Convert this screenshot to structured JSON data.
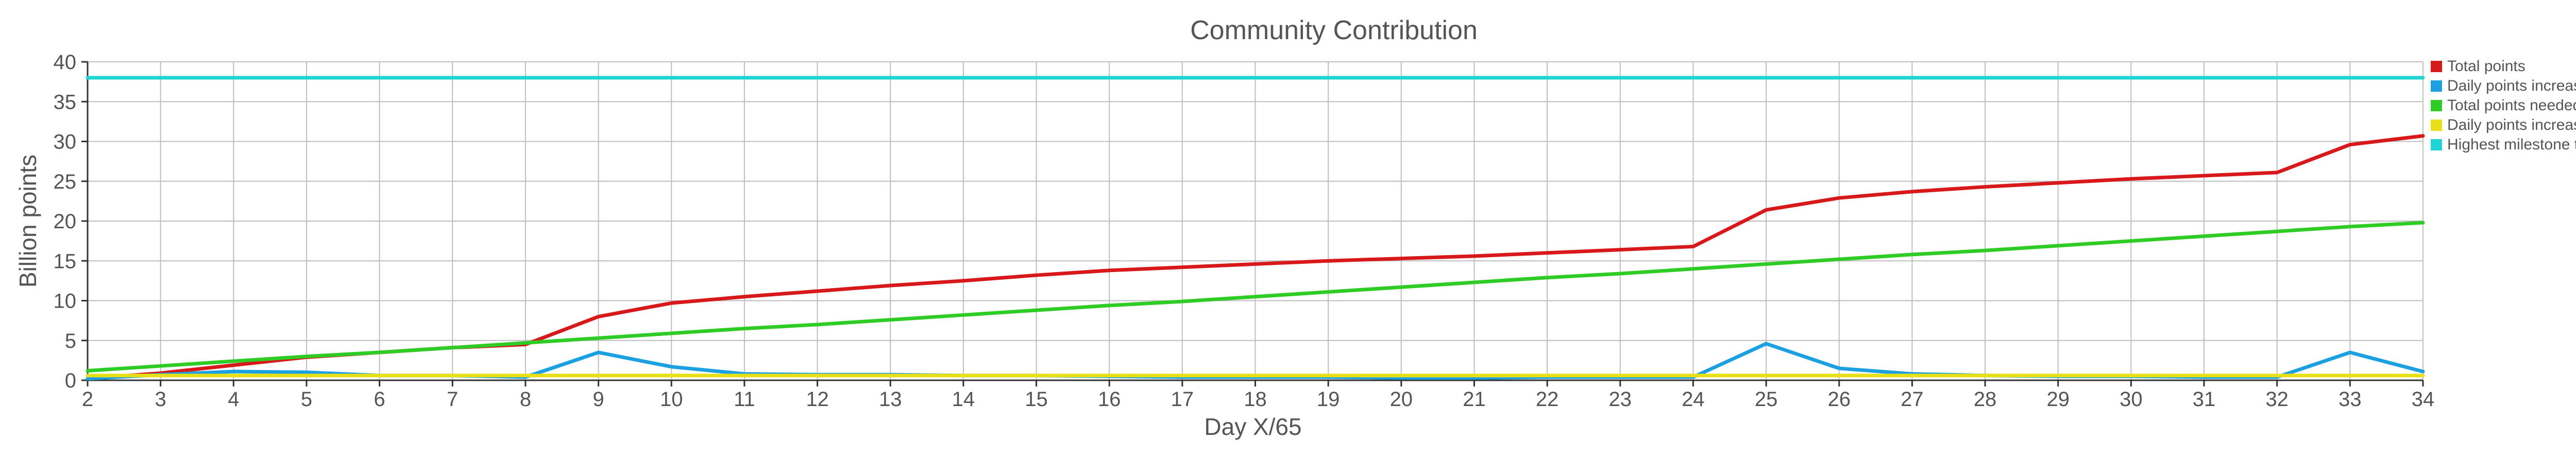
{
  "chart_data": {
    "type": "line",
    "title": "Community Contribution",
    "xlabel": "Day X/65",
    "ylabel": "Billion points",
    "x": [
      2,
      3,
      4,
      5,
      6,
      7,
      8,
      9,
      10,
      11,
      12,
      13,
      14,
      15,
      16,
      17,
      18,
      19,
      20,
      21,
      22,
      23,
      24,
      25,
      26,
      27,
      28,
      29,
      30,
      31,
      32,
      33,
      34
    ],
    "xlim": [
      2,
      34
    ],
    "ylim": [
      0,
      40
    ],
    "y_ticks": [
      0,
      5,
      10,
      15,
      20,
      25,
      30,
      35,
      40
    ],
    "grid": true,
    "legend_position": "right",
    "series": [
      {
        "name": "Total points",
        "color": "#d7191c",
        "values": [
          0.2,
          0.9,
          1.9,
          2.9,
          3.5,
          4.1,
          4.5,
          8.0,
          9.7,
          10.5,
          11.2,
          11.9,
          12.5,
          13.2,
          13.8,
          14.2,
          14.6,
          15.0,
          15.3,
          15.6,
          16.0,
          16.4,
          16.8,
          21.4,
          22.9,
          23.7,
          24.3,
          24.8,
          25.3,
          25.7,
          26.1,
          29.6,
          30.7
        ]
      },
      {
        "name": "Daily points increase",
        "color": "#1ba1e2",
        "values": [
          0.2,
          0.7,
          1.1,
          1.0,
          0.6,
          0.6,
          0.4,
          3.5,
          1.7,
          0.8,
          0.7,
          0.7,
          0.6,
          0.6,
          0.5,
          0.4,
          0.4,
          0.4,
          0.3,
          0.3,
          0.4,
          0.4,
          0.4,
          4.6,
          1.5,
          0.8,
          0.6,
          0.5,
          0.5,
          0.4,
          0.4,
          3.5,
          1.1
        ]
      },
      {
        "name": "Total points needed to date",
        "color": "#2ecc24",
        "values": [
          1.2,
          1.8,
          2.4,
          3.0,
          3.5,
          4.1,
          4.7,
          5.3,
          5.9,
          6.5,
          7.0,
          7.6,
          8.2,
          8.8,
          9.4,
          9.9,
          10.5,
          11.1,
          11.7,
          12.3,
          12.9,
          13.4,
          14.0,
          14.6,
          15.2,
          15.8,
          16.3,
          16.9,
          17.5,
          18.1,
          18.7,
          19.3,
          19.8
        ]
      },
      {
        "name": "Daily points increase needed",
        "color": "#e8e016",
        "values": [
          0.6,
          0.6,
          0.6,
          0.6,
          0.6,
          0.6,
          0.6,
          0.6,
          0.6,
          0.6,
          0.6,
          0.6,
          0.6,
          0.6,
          0.6,
          0.6,
          0.6,
          0.6,
          0.6,
          0.6,
          0.6,
          0.6,
          0.6,
          0.6,
          0.6,
          0.6,
          0.6,
          0.6,
          0.6,
          0.6,
          0.6,
          0.6,
          0.6
        ]
      },
      {
        "name": "Highest milestone to date",
        "color": "#1fd4d4",
        "values": [
          38,
          38,
          38,
          38,
          38,
          38,
          38,
          38,
          38,
          38,
          38,
          38,
          38,
          38,
          38,
          38,
          38,
          38,
          38,
          38,
          38,
          38,
          38,
          38,
          38,
          38,
          38,
          38,
          38,
          38,
          38,
          38,
          38
        ]
      }
    ]
  }
}
